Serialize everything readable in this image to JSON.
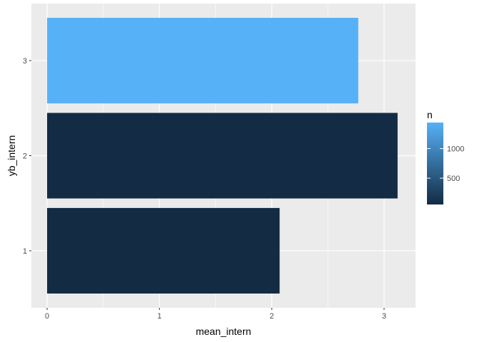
{
  "chart_data": {
    "type": "bar",
    "orientation": "horizontal",
    "categories": [
      "1",
      "2",
      "3"
    ],
    "values": [
      2.07,
      3.12,
      2.77
    ],
    "fill_values": [
      55,
      60,
      1440
    ],
    "xlabel": "mean_intern",
    "ylabel": "yb_intern",
    "xlim": [
      -0.14,
      3.28
    ],
    "x_ticks": [
      "0",
      "1",
      "2",
      "3"
    ],
    "y_ticks": [
      "1",
      "2",
      "3"
    ],
    "grid": true,
    "panel_background": "#ebebeb",
    "grid_color": "#ffffff",
    "legend": {
      "title": "n",
      "position": "right",
      "labels": [
        "500",
        "1000"
      ],
      "label_values": [
        500,
        1000
      ],
      "range": [
        55,
        1440
      ],
      "color_low": "#132b43",
      "color_high": "#56b1f7"
    }
  }
}
